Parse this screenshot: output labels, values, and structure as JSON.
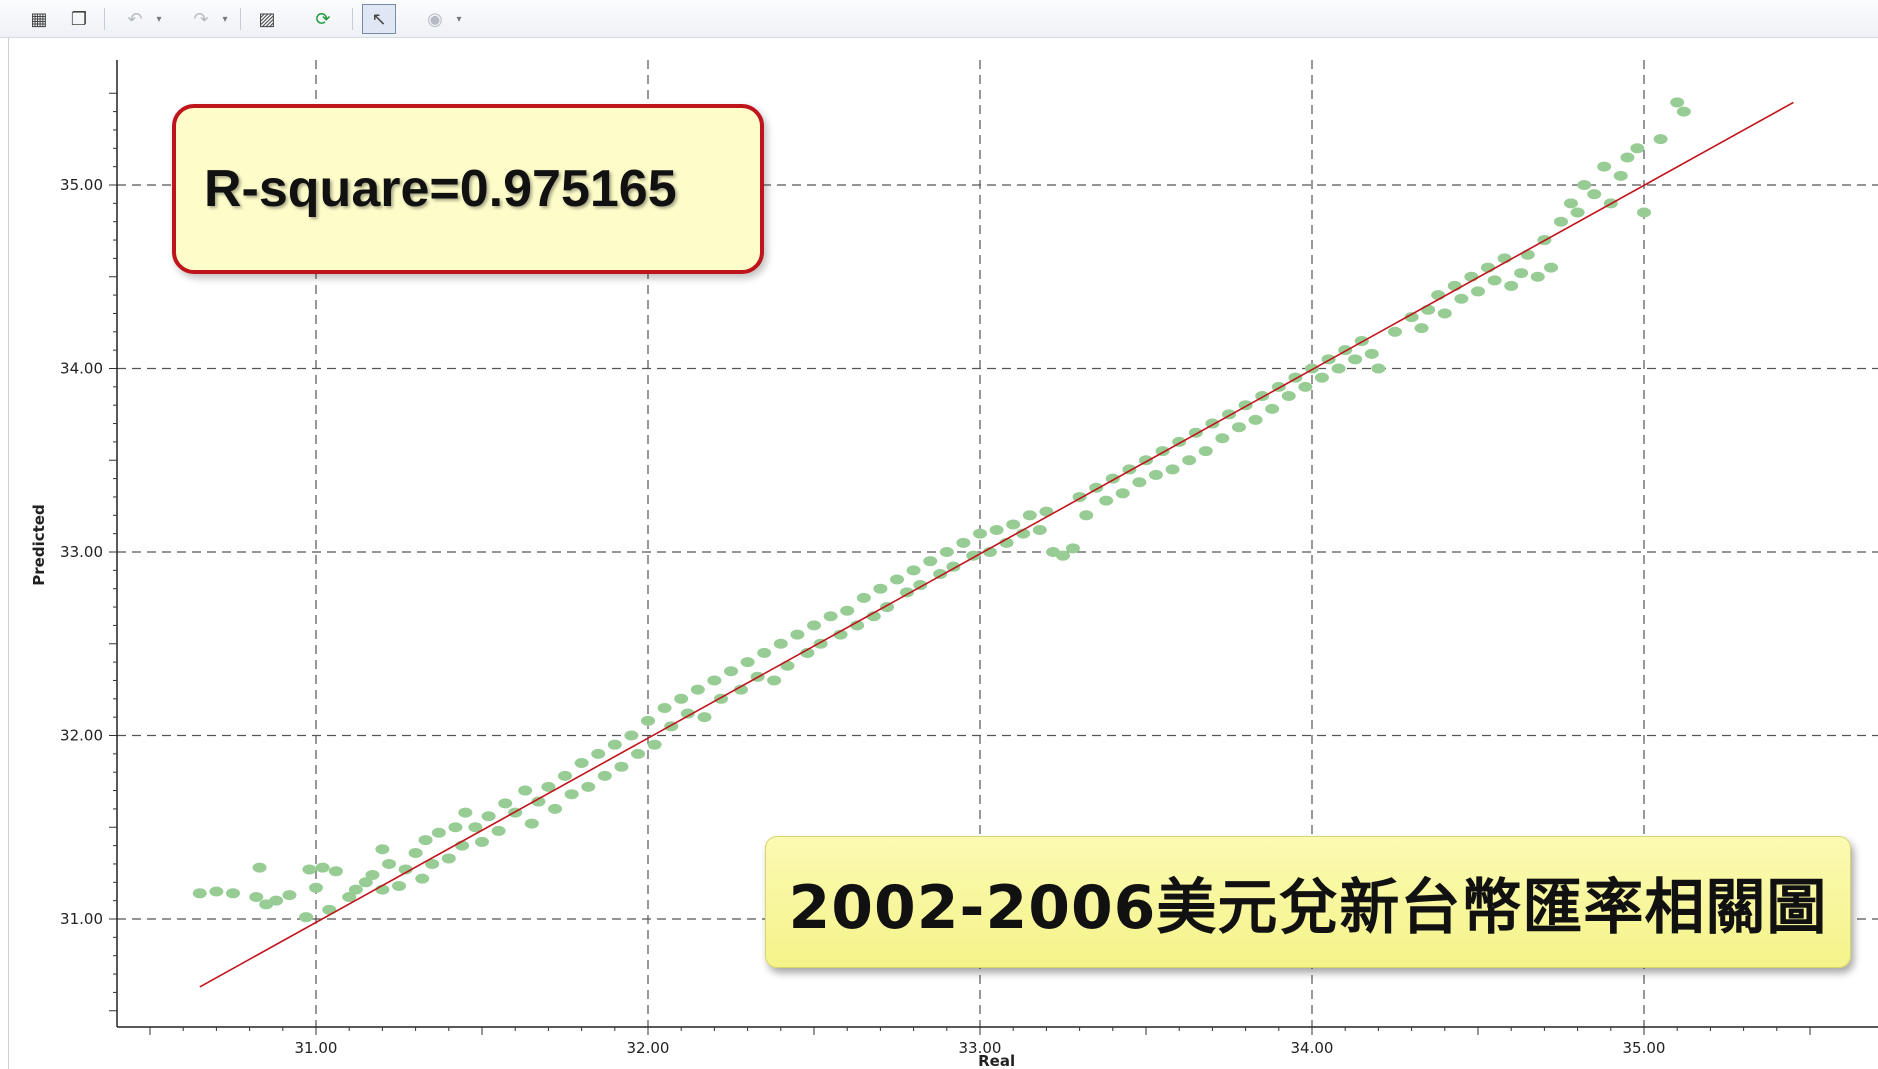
{
  "toolbar": {
    "items": [
      {
        "name": "export-icon",
        "glyph": "▦"
      },
      {
        "name": "copy-icon",
        "glyph": "❐"
      },
      {
        "name": "undo-icon",
        "glyph": "↶"
      },
      {
        "name": "redo-icon",
        "glyph": "↷"
      },
      {
        "name": "chart-settings-icon",
        "glyph": "▨"
      },
      {
        "name": "refresh-icon",
        "glyph": "⟳"
      },
      {
        "name": "pointer-icon",
        "glyph": "↖"
      },
      {
        "name": "target-icon",
        "glyph": "◉"
      }
    ]
  },
  "colors": {
    "points": "#97cc94",
    "fit_line": "#c0141c",
    "grid": "#555555",
    "r2_border": "#c0141c",
    "r2_fill": "#fefdca",
    "title_fill": "#f8f69e"
  },
  "annotations": {
    "r_square": "R-square=0.975165",
    "title": "2002-2006美元兌新台幣匯率相關圖"
  },
  "chart_data": {
    "type": "scatter",
    "title": "2002-2006美元兌新台幣匯率相關圖",
    "xlabel": "Real",
    "ylabel": "Predicted",
    "xlim": [
      30.4,
      35.65
    ],
    "ylim": [
      30.4,
      35.65
    ],
    "xticks": [
      "31.00",
      "32.00",
      "33.00",
      "34.00",
      "35.00"
    ],
    "yticks": [
      "31.00",
      "32.00",
      "33.00",
      "34.00",
      "35.00"
    ],
    "grid": true,
    "fit_line": {
      "x": [
        30.65,
        35.45
      ],
      "y": [
        30.63,
        35.45
      ]
    },
    "series": [
      {
        "values": [
          [
            30.65,
            31.14
          ],
          [
            30.7,
            31.15
          ],
          [
            30.75,
            31.14
          ],
          [
            30.82,
            31.12
          ],
          [
            30.85,
            31.08
          ],
          [
            30.83,
            31.28
          ],
          [
            30.88,
            31.1
          ],
          [
            30.92,
            31.13
          ],
          [
            30.97,
            31.01
          ],
          [
            31.0,
            31.17
          ],
          [
            30.98,
            31.27
          ],
          [
            31.02,
            31.28
          ],
          [
            31.04,
            31.05
          ],
          [
            31.06,
            31.26
          ],
          [
            31.1,
            31.12
          ],
          [
            31.12,
            31.16
          ],
          [
            31.15,
            31.2
          ],
          [
            31.17,
            31.24
          ],
          [
            31.2,
            31.16
          ],
          [
            31.2,
            31.38
          ],
          [
            31.22,
            31.3
          ],
          [
            31.25,
            31.18
          ],
          [
            31.27,
            31.27
          ],
          [
            31.3,
            31.36
          ],
          [
            31.32,
            31.22
          ],
          [
            31.33,
            31.43
          ],
          [
            31.35,
            31.3
          ],
          [
            31.37,
            31.47
          ],
          [
            31.4,
            31.33
          ],
          [
            31.42,
            31.5
          ],
          [
            31.44,
            31.4
          ],
          [
            31.45,
            31.58
          ],
          [
            31.48,
            31.5
          ],
          [
            31.5,
            31.42
          ],
          [
            31.52,
            31.56
          ],
          [
            31.55,
            31.48
          ],
          [
            31.57,
            31.63
          ],
          [
            31.6,
            31.58
          ],
          [
            31.63,
            31.7
          ],
          [
            31.65,
            31.52
          ],
          [
            31.67,
            31.64
          ],
          [
            31.7,
            31.72
          ],
          [
            31.72,
            31.6
          ],
          [
            31.75,
            31.78
          ],
          [
            31.77,
            31.68
          ],
          [
            31.8,
            31.85
          ],
          [
            31.82,
            31.72
          ],
          [
            31.85,
            31.9
          ],
          [
            31.87,
            31.78
          ],
          [
            31.9,
            31.95
          ],
          [
            31.92,
            31.83
          ],
          [
            31.95,
            32.0
          ],
          [
            31.97,
            31.9
          ],
          [
            32.0,
            32.08
          ],
          [
            32.02,
            31.95
          ],
          [
            32.05,
            32.15
          ],
          [
            32.07,
            32.05
          ],
          [
            32.1,
            32.2
          ],
          [
            32.12,
            32.12
          ],
          [
            32.15,
            32.25
          ],
          [
            32.17,
            32.1
          ],
          [
            32.2,
            32.3
          ],
          [
            32.22,
            32.2
          ],
          [
            32.25,
            32.35
          ],
          [
            32.28,
            32.25
          ],
          [
            32.3,
            32.4
          ],
          [
            32.33,
            32.32
          ],
          [
            32.35,
            32.45
          ],
          [
            32.38,
            32.3
          ],
          [
            32.4,
            32.5
          ],
          [
            32.42,
            32.38
          ],
          [
            32.45,
            32.55
          ],
          [
            32.48,
            32.45
          ],
          [
            32.5,
            32.6
          ],
          [
            32.52,
            32.5
          ],
          [
            32.55,
            32.65
          ],
          [
            32.58,
            32.55
          ],
          [
            32.6,
            32.68
          ],
          [
            32.63,
            32.6
          ],
          [
            32.65,
            32.75
          ],
          [
            32.68,
            32.65
          ],
          [
            32.7,
            32.8
          ],
          [
            32.72,
            32.7
          ],
          [
            32.75,
            32.85
          ],
          [
            32.78,
            32.78
          ],
          [
            32.8,
            32.9
          ],
          [
            32.82,
            32.82
          ],
          [
            32.85,
            32.95
          ],
          [
            32.88,
            32.88
          ],
          [
            32.9,
            33.0
          ],
          [
            32.92,
            32.92
          ],
          [
            32.95,
            33.05
          ],
          [
            32.98,
            32.98
          ],
          [
            33.0,
            33.1
          ],
          [
            33.03,
            33.0
          ],
          [
            33.05,
            33.12
          ],
          [
            33.08,
            33.05
          ],
          [
            33.1,
            33.15
          ],
          [
            33.13,
            33.1
          ],
          [
            33.15,
            33.2
          ],
          [
            33.18,
            33.12
          ],
          [
            33.2,
            33.22
          ],
          [
            33.22,
            33.0
          ],
          [
            33.25,
            32.98
          ],
          [
            33.28,
            33.02
          ],
          [
            33.3,
            33.3
          ],
          [
            33.32,
            33.2
          ],
          [
            33.35,
            33.35
          ],
          [
            33.38,
            33.28
          ],
          [
            33.4,
            33.4
          ],
          [
            33.43,
            33.32
          ],
          [
            33.45,
            33.45
          ],
          [
            33.48,
            33.38
          ],
          [
            33.5,
            33.5
          ],
          [
            33.53,
            33.42
          ],
          [
            33.55,
            33.55
          ],
          [
            33.58,
            33.45
          ],
          [
            33.6,
            33.6
          ],
          [
            33.63,
            33.5
          ],
          [
            33.65,
            33.65
          ],
          [
            33.68,
            33.55
          ],
          [
            33.7,
            33.7
          ],
          [
            33.73,
            33.62
          ],
          [
            33.75,
            33.75
          ],
          [
            33.78,
            33.68
          ],
          [
            33.8,
            33.8
          ],
          [
            33.83,
            33.72
          ],
          [
            33.85,
            33.85
          ],
          [
            33.88,
            33.78
          ],
          [
            33.9,
            33.9
          ],
          [
            33.93,
            33.85
          ],
          [
            33.95,
            33.95
          ],
          [
            33.98,
            33.9
          ],
          [
            34.0,
            34.0
          ],
          [
            34.03,
            33.95
          ],
          [
            34.05,
            34.05
          ],
          [
            34.08,
            34.0
          ],
          [
            34.1,
            34.1
          ],
          [
            34.13,
            34.05
          ],
          [
            34.15,
            34.15
          ],
          [
            34.18,
            34.08
          ],
          [
            34.2,
            34.0
          ],
          [
            34.25,
            34.2
          ],
          [
            34.3,
            34.28
          ],
          [
            34.33,
            34.22
          ],
          [
            34.35,
            34.32
          ],
          [
            34.38,
            34.4
          ],
          [
            34.4,
            34.3
          ],
          [
            34.43,
            34.45
          ],
          [
            34.45,
            34.38
          ],
          [
            34.48,
            34.5
          ],
          [
            34.5,
            34.42
          ],
          [
            34.53,
            34.55
          ],
          [
            34.55,
            34.48
          ],
          [
            34.58,
            34.6
          ],
          [
            34.6,
            34.45
          ],
          [
            34.63,
            34.52
          ],
          [
            34.65,
            34.62
          ],
          [
            34.68,
            34.5
          ],
          [
            34.7,
            34.7
          ],
          [
            34.72,
            34.55
          ],
          [
            34.75,
            34.8
          ],
          [
            34.78,
            34.9
          ],
          [
            34.8,
            34.85
          ],
          [
            34.82,
            35.0
          ],
          [
            34.85,
            34.95
          ],
          [
            34.88,
            35.1
          ],
          [
            34.9,
            34.9
          ],
          [
            34.93,
            35.05
          ],
          [
            34.95,
            35.15
          ],
          [
            34.98,
            35.2
          ],
          [
            35.0,
            34.85
          ],
          [
            35.05,
            35.25
          ],
          [
            35.1,
            35.45
          ],
          [
            35.12,
            35.4
          ]
        ]
      }
    ]
  }
}
